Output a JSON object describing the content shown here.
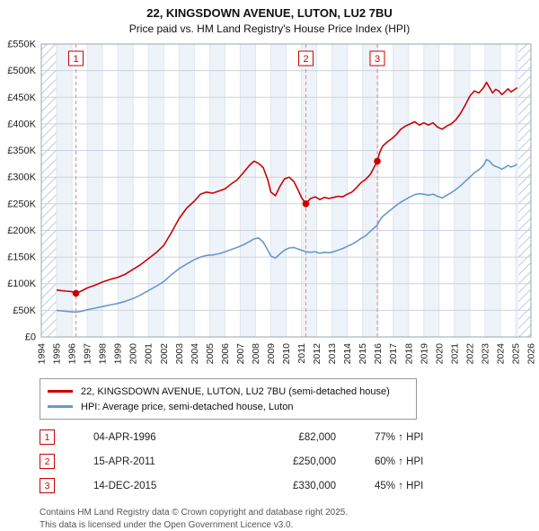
{
  "title": "22, KINGSDOWN AVENUE, LUTON, LU2 7BU",
  "subtitle": "Price paid vs. HM Land Registry's House Price Index (HPI)",
  "legend": [
    {
      "label": "22, KINGSDOWN AVENUE, LUTON, LU2 7BU (semi-detached house)",
      "color": "#cc0000"
    },
    {
      "label": "HPI: Average price, semi-detached house, Luton",
      "color": "#6699cc"
    }
  ],
  "transactions": [
    {
      "num": "1",
      "date": "04-APR-1996",
      "price": "£82,000",
      "hpi": "77% ↑ HPI"
    },
    {
      "num": "2",
      "date": "15-APR-2011",
      "price": "£250,000",
      "hpi": "60% ↑ HPI"
    },
    {
      "num": "3",
      "date": "14-DEC-2015",
      "price": "£330,000",
      "hpi": "45% ↑ HPI"
    }
  ],
  "footer": {
    "line1": "Contains HM Land Registry data © Crown copyright and database right 2025.",
    "line2": "This data is licensed under the Open Government Licence v3.0."
  },
  "chart_data": {
    "type": "line",
    "xlim": [
      1994,
      2026
    ],
    "ylim": [
      0,
      550
    ],
    "x_ticks": [
      1994,
      1995,
      1996,
      1997,
      1998,
      1999,
      2000,
      2001,
      2002,
      2003,
      2004,
      2005,
      2006,
      2007,
      2008,
      2009,
      2010,
      2011,
      2012,
      2013,
      2014,
      2015,
      2016,
      2017,
      2018,
      2019,
      2020,
      2021,
      2022,
      2023,
      2024,
      2025,
      2026
    ],
    "y_ticks": [
      {
        "value": 0,
        "label": "£0"
      },
      {
        "value": 50,
        "label": "£50K"
      },
      {
        "value": 100,
        "label": "£100K"
      },
      {
        "value": 150,
        "label": "£150K"
      },
      {
        "value": 200,
        "label": "£200K"
      },
      {
        "value": 250,
        "label": "£250K"
      },
      {
        "value": 300,
        "label": "£300K"
      },
      {
        "value": 350,
        "label": "£350K"
      },
      {
        "value": 400,
        "label": "£400K"
      },
      {
        "value": 450,
        "label": "£450K"
      },
      {
        "value": 500,
        "label": "£500K"
      },
      {
        "value": 550,
        "label": "£550K"
      }
    ],
    "no_data_ranges": [
      [
        1994,
        1995.0
      ],
      [
        2025.2,
        2026
      ]
    ],
    "sales": [
      {
        "label": "1",
        "x": 1996.26,
        "y": 82
      },
      {
        "label": "2",
        "x": 2011.29,
        "y": 250
      },
      {
        "label": "3",
        "x": 2015.96,
        "y": 330
      }
    ],
    "series": [
      {
        "name": "22, KINGSDOWN AVENUE, LUTON, LU2 7BU (semi-detached house)",
        "color": "#cc0000",
        "points": [
          [
            1995.0,
            88
          ],
          [
            1995.3,
            87
          ],
          [
            1995.6,
            86
          ],
          [
            1996.0,
            85
          ],
          [
            1996.26,
            82
          ],
          [
            1996.6,
            86
          ],
          [
            1997.0,
            92
          ],
          [
            1997.5,
            97
          ],
          [
            1998.0,
            103
          ],
          [
            1998.5,
            108
          ],
          [
            1999.0,
            112
          ],
          [
            1999.5,
            118
          ],
          [
            2000.0,
            127
          ],
          [
            2000.5,
            136
          ],
          [
            2001.0,
            147
          ],
          [
            2001.5,
            158
          ],
          [
            2002.0,
            172
          ],
          [
            2002.5,
            196
          ],
          [
            2003.0,
            222
          ],
          [
            2003.5,
            242
          ],
          [
            2004.0,
            255
          ],
          [
            2004.4,
            268
          ],
          [
            2004.8,
            272
          ],
          [
            2005.2,
            270
          ],
          [
            2005.6,
            274
          ],
          [
            2006.0,
            278
          ],
          [
            2006.4,
            287
          ],
          [
            2006.8,
            295
          ],
          [
            2007.2,
            308
          ],
          [
            2007.6,
            322
          ],
          [
            2007.9,
            330
          ],
          [
            2008.2,
            326
          ],
          [
            2008.5,
            318
          ],
          [
            2008.8,
            295
          ],
          [
            2009.0,
            272
          ],
          [
            2009.3,
            265
          ],
          [
            2009.6,
            283
          ],
          [
            2009.9,
            297
          ],
          [
            2010.2,
            300
          ],
          [
            2010.5,
            292
          ],
          [
            2010.8,
            275
          ],
          [
            2011.0,
            262
          ],
          [
            2011.29,
            250
          ],
          [
            2011.6,
            260
          ],
          [
            2011.9,
            263
          ],
          [
            2012.2,
            258
          ],
          [
            2012.5,
            262
          ],
          [
            2012.8,
            260
          ],
          [
            2013.1,
            262
          ],
          [
            2013.4,
            264
          ],
          [
            2013.7,
            263
          ],
          [
            2014.0,
            268
          ],
          [
            2014.3,
            272
          ],
          [
            2014.6,
            280
          ],
          [
            2014.9,
            290
          ],
          [
            2015.2,
            296
          ],
          [
            2015.5,
            305
          ],
          [
            2015.96,
            330
          ],
          [
            2016.1,
            345
          ],
          [
            2016.3,
            358
          ],
          [
            2016.6,
            366
          ],
          [
            2016.9,
            372
          ],
          [
            2017.2,
            380
          ],
          [
            2017.5,
            390
          ],
          [
            2017.8,
            396
          ],
          [
            2018.1,
            400
          ],
          [
            2018.4,
            404
          ],
          [
            2018.7,
            398
          ],
          [
            2019.0,
            402
          ],
          [
            2019.3,
            398
          ],
          [
            2019.6,
            402
          ],
          [
            2019.9,
            394
          ],
          [
            2020.2,
            390
          ],
          [
            2020.5,
            396
          ],
          [
            2020.8,
            400
          ],
          [
            2021.1,
            408
          ],
          [
            2021.4,
            420
          ],
          [
            2021.7,
            435
          ],
          [
            2022.0,
            452
          ],
          [
            2022.3,
            462
          ],
          [
            2022.6,
            458
          ],
          [
            2022.9,
            468
          ],
          [
            2023.1,
            478
          ],
          [
            2023.3,
            468
          ],
          [
            2023.5,
            458
          ],
          [
            2023.7,
            465
          ],
          [
            2023.9,
            462
          ],
          [
            2024.1,
            455
          ],
          [
            2024.3,
            460
          ],
          [
            2024.5,
            466
          ],
          [
            2024.7,
            460
          ],
          [
            2024.9,
            464
          ],
          [
            2025.1,
            468
          ]
        ]
      },
      {
        "name": "HPI: Average price, semi-detached house, Luton",
        "color": "#6699cc",
        "points": [
          [
            1995.0,
            50
          ],
          [
            1995.3,
            49
          ],
          [
            1995.6,
            48
          ],
          [
            1996.0,
            47
          ],
          [
            1996.26,
            46.5
          ],
          [
            1996.6,
            48
          ],
          [
            1997.0,
            51
          ],
          [
            1997.5,
            54
          ],
          [
            1998.0,
            57
          ],
          [
            1998.5,
            60
          ],
          [
            1999.0,
            63
          ],
          [
            1999.5,
            67
          ],
          [
            2000.0,
            72
          ],
          [
            2000.5,
            79
          ],
          [
            2001.0,
            87
          ],
          [
            2001.5,
            95
          ],
          [
            2002.0,
            104
          ],
          [
            2002.5,
            117
          ],
          [
            2003.0,
            128
          ],
          [
            2003.5,
            137
          ],
          [
            2004.0,
            145
          ],
          [
            2004.4,
            150
          ],
          [
            2004.8,
            153
          ],
          [
            2005.2,
            154
          ],
          [
            2005.6,
            156
          ],
          [
            2006.0,
            160
          ],
          [
            2006.4,
            164
          ],
          [
            2006.8,
            168
          ],
          [
            2007.2,
            173
          ],
          [
            2007.6,
            179
          ],
          [
            2007.9,
            184
          ],
          [
            2008.2,
            186
          ],
          [
            2008.5,
            178
          ],
          [
            2008.8,
            163
          ],
          [
            2009.0,
            152
          ],
          [
            2009.3,
            148
          ],
          [
            2009.6,
            156
          ],
          [
            2009.9,
            163
          ],
          [
            2010.2,
            167
          ],
          [
            2010.5,
            168
          ],
          [
            2010.8,
            165
          ],
          [
            2011.0,
            163
          ],
          [
            2011.29,
            160
          ],
          [
            2011.6,
            159
          ],
          [
            2011.9,
            160
          ],
          [
            2012.2,
            157
          ],
          [
            2012.5,
            159
          ],
          [
            2012.8,
            158
          ],
          [
            2013.1,
            160
          ],
          [
            2013.4,
            163
          ],
          [
            2013.7,
            166
          ],
          [
            2014.0,
            170
          ],
          [
            2014.3,
            174
          ],
          [
            2014.6,
            179
          ],
          [
            2014.9,
            185
          ],
          [
            2015.2,
            190
          ],
          [
            2015.5,
            198
          ],
          [
            2015.96,
            210
          ],
          [
            2016.1,
            218
          ],
          [
            2016.3,
            226
          ],
          [
            2016.6,
            233
          ],
          [
            2016.9,
            240
          ],
          [
            2017.2,
            247
          ],
          [
            2017.5,
            253
          ],
          [
            2017.8,
            258
          ],
          [
            2018.1,
            263
          ],
          [
            2018.4,
            267
          ],
          [
            2018.7,
            269
          ],
          [
            2019.0,
            268
          ],
          [
            2019.3,
            266
          ],
          [
            2019.6,
            268
          ],
          [
            2019.9,
            264
          ],
          [
            2020.2,
            261
          ],
          [
            2020.5,
            266
          ],
          [
            2020.8,
            271
          ],
          [
            2021.1,
            277
          ],
          [
            2021.4,
            284
          ],
          [
            2021.7,
            292
          ],
          [
            2022.0,
            300
          ],
          [
            2022.3,
            308
          ],
          [
            2022.6,
            314
          ],
          [
            2022.9,
            322
          ],
          [
            2023.1,
            333
          ],
          [
            2023.3,
            330
          ],
          [
            2023.5,
            323
          ],
          [
            2023.7,
            320
          ],
          [
            2023.9,
            318
          ],
          [
            2024.1,
            315
          ],
          [
            2024.3,
            318
          ],
          [
            2024.5,
            322
          ],
          [
            2024.7,
            319
          ],
          [
            2024.9,
            321
          ],
          [
            2025.1,
            324
          ]
        ]
      }
    ],
    "styles": {
      "stripe_fill": "#eef3fa",
      "grid_h": "#ccd3de",
      "grid_v": "#e0e5ed",
      "border": "#9aa4b2",
      "sale_line": "#e38a8a",
      "hatch_line": "#c3cfdf",
      "marker": "#cc0000"
    }
  }
}
